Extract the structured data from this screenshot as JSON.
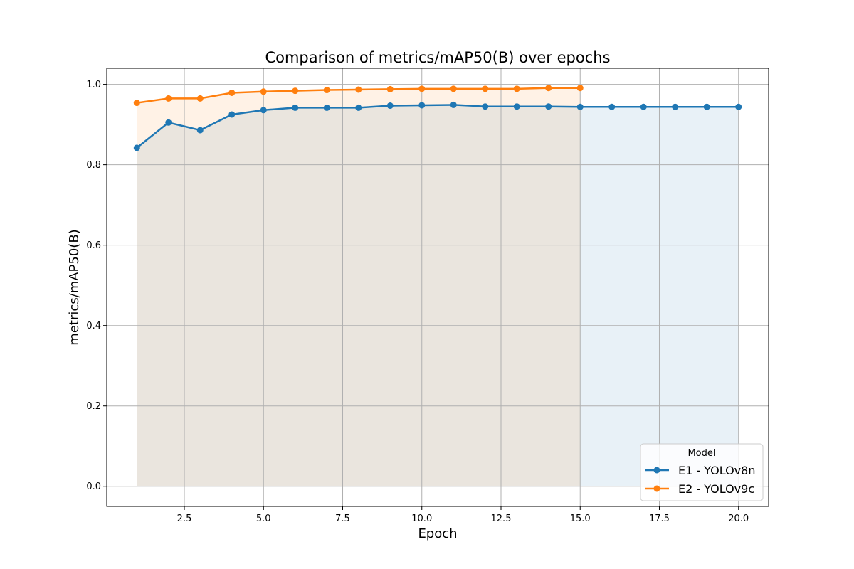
{
  "chart_data": {
    "type": "line",
    "title": "Comparison of metrics/mAP50(B) over epochs",
    "xlabel": "Epoch",
    "ylabel": "metrics/mAP50(B)",
    "xlim": [
      0.05,
      20.95
    ],
    "ylim": [
      -0.05,
      1.04
    ],
    "xticks": [
      2.5,
      5.0,
      7.5,
      10.0,
      12.5,
      15.0,
      17.5,
      20.0
    ],
    "xtick_labels": [
      "2.5",
      "5.0",
      "7.5",
      "10.0",
      "12.5",
      "15.0",
      "17.5",
      "20.0"
    ],
    "yticks": [
      0.0,
      0.2,
      0.4,
      0.6,
      0.8,
      1.0
    ],
    "ytick_labels": [
      "0.0",
      "0.2",
      "0.4",
      "0.6",
      "0.8",
      "1.0"
    ],
    "grid": true,
    "filled_area": true,
    "legend": {
      "title": "Model",
      "placement": "lower-right"
    },
    "series": [
      {
        "name": "E1 - YOLOv8n",
        "color": "#1f77b4",
        "fill_color": "#1f77b4",
        "x": [
          1,
          2,
          3,
          4,
          5,
          6,
          7,
          8,
          9,
          10,
          11,
          12,
          13,
          14,
          15,
          16,
          17,
          18,
          19,
          20
        ],
        "values": [
          0.842,
          0.905,
          0.886,
          0.925,
          0.936,
          0.942,
          0.942,
          0.942,
          0.947,
          0.948,
          0.949,
          0.945,
          0.945,
          0.945,
          0.944,
          0.944,
          0.944,
          0.944,
          0.944,
          0.944
        ]
      },
      {
        "name": "E2 - YOLOv9c",
        "color": "#ff7f0e",
        "fill_color": "#ff7f0e",
        "x": [
          1,
          2,
          3,
          4,
          5,
          6,
          7,
          8,
          9,
          10,
          11,
          12,
          13,
          14,
          15
        ],
        "values": [
          0.954,
          0.965,
          0.965,
          0.979,
          0.982,
          0.984,
          0.986,
          0.987,
          0.988,
          0.989,
          0.989,
          0.989,
          0.989,
          0.991,
          0.991
        ]
      }
    ]
  }
}
